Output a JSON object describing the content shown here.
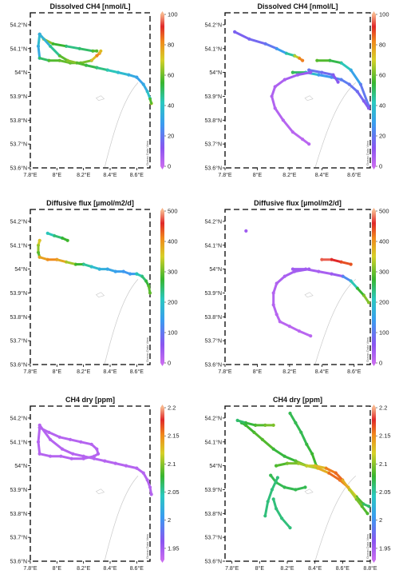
{
  "chart_data": [
    {
      "type": "scatter",
      "title": "Dissolved CH4 [nmol/L]",
      "xticks": [
        "7.8°E",
        "8°E",
        "8.2°E",
        "8.4°E",
        "8.6°E"
      ],
      "yticks": [
        "54.2°N",
        "54.1°N",
        "54°N",
        "53.9°N",
        "53.8°N",
        "53.7°N",
        "53.6°N"
      ],
      "colorbar_ticks": [
        "100",
        "80",
        "60",
        "40",
        "20",
        "0"
      ],
      "clim": [
        0,
        100
      ],
      "watermark": "Ocean Data View",
      "xlim": [
        7.8,
        8.7
      ],
      "ylim": [
        53.6,
        54.25
      ],
      "tracks": [
        {
          "lon": [
            7.87,
            7.9,
            7.97,
            8.07,
            8.17,
            8.27,
            8.3
          ],
          "lat": [
            54.16,
            54.14,
            54.12,
            54.11,
            54.1,
            54.09,
            54.09
          ],
          "value": [
            70,
            65,
            60,
            50,
            45,
            55,
            60
          ]
        },
        {
          "lon": [
            7.87,
            7.86,
            7.87
          ],
          "lat": [
            54.16,
            54.11,
            54.06
          ],
          "value": [
            40,
            35,
            30
          ]
        },
        {
          "lon": [
            7.87,
            7.94,
            8.02,
            8.1,
            8.18,
            8.26,
            8.3,
            8.32,
            8.33
          ],
          "lat": [
            54.06,
            54.05,
            54.05,
            54.04,
            54.04,
            54.05,
            54.07,
            54.08,
            54.09
          ],
          "value": [
            45,
            55,
            60,
            58,
            60,
            62,
            85,
            80,
            70
          ]
        },
        {
          "lon": [
            7.87,
            7.95,
            8.02,
            8.08,
            8.15,
            8.22,
            8.3,
            8.38,
            8.46,
            8.54,
            8.6,
            8.65,
            8.68,
            8.7,
            8.71
          ],
          "lat": [
            54.16,
            54.11,
            54.07,
            54.05,
            54.04,
            54.03,
            54.02,
            54.01,
            54.0,
            53.99,
            53.98,
            53.95,
            53.92,
            53.89,
            53.87
          ],
          "value": [
            30,
            40,
            52,
            65,
            60,
            55,
            50,
            45,
            40,
            35,
            30,
            30,
            35,
            45,
            70
          ]
        }
      ]
    },
    {
      "type": "scatter",
      "title": "Dissolved CH4 [nmol/L]",
      "xticks": [
        "7.8°E",
        "8°E",
        "8.2°E",
        "8.4°E",
        "8.6°E"
      ],
      "yticks": [
        "54.2°N",
        "54.1°N",
        "54°N",
        "53.9°N",
        "53.8°N",
        "53.7°N",
        "53.6°N"
      ],
      "colorbar_ticks": [
        "100",
        "80",
        "60",
        "40",
        "20",
        "0"
      ],
      "clim": [
        0,
        100
      ],
      "watermark": "Ocean Data View",
      "xlim": [
        7.8,
        8.7
      ],
      "ylim": [
        53.6,
        54.25
      ],
      "tracks": [
        {
          "lon": [
            7.86,
            7.95,
            8.05,
            8.12,
            8.18,
            8.23,
            8.26,
            8.28
          ],
          "lat": [
            54.17,
            54.14,
            54.12,
            54.1,
            54.08,
            54.07,
            54.06,
            54.05
          ],
          "value": [
            15,
            15,
            18,
            22,
            35,
            55,
            80,
            85
          ]
        },
        {
          "lon": [
            8.37,
            8.45,
            8.52,
            8.58,
            8.64,
            8.69
          ],
          "lat": [
            54.05,
            54.05,
            54.04,
            54.01,
            53.95,
            53.86
          ],
          "value": [
            60,
            55,
            50,
            35,
            25,
            15
          ]
        },
        {
          "lon": [
            8.22,
            8.3,
            8.38,
            8.46,
            8.52,
            8.57,
            8.62,
            8.66,
            8.69
          ],
          "lat": [
            54.0,
            54.0,
            53.99,
            53.98,
            53.97,
            53.95,
            53.92,
            53.88,
            53.85
          ],
          "value": [
            55,
            45,
            30,
            25,
            22,
            20,
            18,
            15,
            12
          ]
        },
        {
          "lon": [
            8.32,
            8.4,
            8.47,
            8.5
          ],
          "lat": [
            54.01,
            54.0,
            53.99,
            53.96
          ],
          "value": [
            20,
            18,
            16,
            10
          ]
        },
        {
          "lon": [
            8.33,
            8.25,
            8.17,
            8.11,
            8.09,
            8.11,
            8.16,
            8.22,
            8.28,
            8.32
          ],
          "lat": [
            54.0,
            53.99,
            53.97,
            53.94,
            53.9,
            53.85,
            53.8,
            53.75,
            53.72,
            53.7
          ],
          "value": [
            10,
            8,
            6,
            5,
            5,
            4,
            4,
            3,
            3,
            3
          ]
        }
      ]
    },
    {
      "type": "scatter",
      "title": "Diffusive flux [µmol/m2/d]",
      "xticks": [
        "7.8°E",
        "8°E",
        "8.2°E",
        "8.4°E",
        "8.6°E"
      ],
      "yticks": [
        "54.2°N",
        "54.1°N",
        "54°N",
        "53.9°N",
        "53.8°N",
        "53.7°N",
        "53.6°N"
      ],
      "colorbar_ticks": [
        "500",
        "400",
        "300",
        "200",
        "100",
        "0"
      ],
      "clim": [
        0,
        500
      ],
      "watermark": "Ocean Data View",
      "xlim": [
        7.8,
        8.7
      ],
      "ylim": [
        53.6,
        54.25
      ],
      "tracks": [
        {
          "lon": [
            7.93,
            7.98,
            8.04,
            8.08
          ],
          "lat": [
            54.15,
            54.14,
            54.13,
            54.12
          ],
          "value": [
            200,
            230,
            260,
            290
          ]
        },
        {
          "lon": [
            7.87,
            7.86,
            7.86,
            7.87
          ],
          "lat": [
            54.12,
            54.1,
            54.07,
            54.05
          ],
          "value": [
            380,
            330,
            300,
            280
          ]
        },
        {
          "lon": [
            7.87,
            7.93,
            8.0,
            8.07,
            8.14,
            8.2,
            8.26,
            8.32,
            8.38,
            8.44,
            8.5,
            8.55,
            8.6
          ],
          "lat": [
            54.05,
            54.04,
            54.04,
            54.03,
            54.02,
            54.02,
            54.01,
            54.0,
            54.0,
            53.99,
            53.99,
            53.98,
            53.98
          ],
          "value": [
            380,
            400,
            420,
            350,
            300,
            250,
            200,
            180,
            160,
            150,
            140,
            130,
            150
          ]
        },
        {
          "lon": [
            8.6,
            8.64,
            8.67,
            8.69,
            8.7
          ],
          "lat": [
            53.98,
            53.97,
            53.95,
            53.93,
            53.9
          ],
          "value": [
            200,
            230,
            260,
            280,
            300
          ]
        }
      ]
    },
    {
      "type": "scatter",
      "title": "Diffusive flux [µmol/m2/d]",
      "xticks": [
        "7.8°E",
        "8°E",
        "8.2°E",
        "8.4°E",
        "8.6°E"
      ],
      "yticks": [
        "54.2°N",
        "54.1°N",
        "54°N",
        "53.9°N",
        "53.8°N",
        "53.7°N",
        "53.6°N"
      ],
      "colorbar_ticks": [
        "500",
        "400",
        "300",
        "200",
        "100",
        "0"
      ],
      "clim": [
        0,
        500
      ],
      "watermark": "Ocean Data View",
      "xlim": [
        7.8,
        8.7
      ],
      "ylim": [
        53.6,
        54.25
      ],
      "tracks": [
        {
          "lon": [
            7.93
          ],
          "lat": [
            54.16
          ],
          "value": [
            40
          ]
        },
        {
          "lon": [
            8.4,
            8.46,
            8.52,
            8.58
          ],
          "lat": [
            54.04,
            54.04,
            54.03,
            54.02
          ],
          "value": [
            480,
            470,
            450,
            430
          ]
        },
        {
          "lon": [
            8.22,
            8.3,
            8.38,
            8.46,
            8.53,
            8.58,
            8.62,
            8.66,
            8.69
          ],
          "lat": [
            54.0,
            54.0,
            53.99,
            53.98,
            53.97,
            53.95,
            53.92,
            53.89,
            53.86
          ],
          "value": [
            40,
            35,
            30,
            30,
            60,
            180,
            250,
            300,
            320
          ]
        },
        {
          "lon": [
            8.32,
            8.23,
            8.17,
            8.12,
            8.1,
            8.1,
            8.12,
            8.14,
            8.2,
            8.26,
            8.33
          ],
          "lat": [
            54.0,
            53.99,
            53.97,
            53.94,
            53.9,
            53.85,
            53.81,
            53.78,
            53.76,
            53.74,
            53.72
          ],
          "value": [
            40,
            35,
            30,
            25,
            20,
            20,
            18,
            15,
            15,
            15,
            15
          ]
        }
      ]
    },
    {
      "type": "scatter",
      "title": "CH4 dry [ppm]",
      "xticks": [
        "7.8°E",
        "8°E",
        "8.2°E",
        "8.4°E",
        "8.6°E"
      ],
      "yticks": [
        "54.2°N",
        "54.1°N",
        "54°N",
        "53.9°N",
        "53.8°N",
        "53.7°N",
        "53.6°N"
      ],
      "colorbar_ticks": [
        "2.2",
        "2.15",
        "2.1",
        "2.05",
        "2",
        "1.95"
      ],
      "clim": [
        1.93,
        2.2
      ],
      "watermark": "Ocean Data View",
      "xlim": [
        7.8,
        8.7
      ],
      "ylim": [
        53.6,
        54.25
      ],
      "tracks": [
        {
          "lon": [
            7.87,
            7.94,
            8.02,
            8.1,
            8.18,
            8.26,
            8.3,
            8.31
          ],
          "lat": [
            54.16,
            54.14,
            54.12,
            54.11,
            54.1,
            54.09,
            54.07,
            54.05
          ],
          "value": [
            1.94,
            1.94,
            1.94,
            1.94,
            1.94,
            1.94,
            1.94,
            1.94
          ]
        },
        {
          "lon": [
            7.87,
            7.86,
            7.87
          ],
          "lat": [
            54.16,
            54.1,
            54.05
          ],
          "value": [
            1.94,
            1.94,
            1.94
          ]
        },
        {
          "lon": [
            7.87,
            7.95,
            8.03,
            8.11,
            8.2,
            8.28,
            8.31
          ],
          "lat": [
            54.05,
            54.04,
            54.04,
            54.03,
            54.03,
            54.04,
            54.05
          ],
          "value": [
            1.94,
            1.94,
            1.94,
            1.94,
            1.94,
            1.94,
            1.94
          ]
        },
        {
          "lon": [
            7.87,
            7.95,
            8.04,
            8.12,
            8.2,
            8.28,
            8.36,
            8.44,
            8.52,
            8.6,
            8.65,
            8.68,
            8.7,
            8.71
          ],
          "lat": [
            54.17,
            54.11,
            54.07,
            54.05,
            54.04,
            54.03,
            54.02,
            54.01,
            54.0,
            53.99,
            53.97,
            53.94,
            53.91,
            53.88
          ],
          "value": [
            1.94,
            1.94,
            1.94,
            1.94,
            1.94,
            1.94,
            1.94,
            1.94,
            1.94,
            1.94,
            1.94,
            1.94,
            1.94,
            1.94
          ]
        }
      ]
    },
    {
      "type": "scatter",
      "title": "CH4 dry [ppm]",
      "xticks": [
        "7.8°E",
        "8°E",
        "8.2°E",
        "8.4°E",
        "8.6°E",
        "8.8°E"
      ],
      "yticks": [
        "54.2°N",
        "54.1°N",
        "54°N",
        "53.9°N",
        "53.8°N",
        "53.7°N",
        "53.6°N"
      ],
      "colorbar_ticks": [
        "2.2",
        "2.15",
        "2.1",
        "2.05",
        "2",
        "1.95"
      ],
      "clim": [
        1.93,
        2.2
      ],
      "watermark": "Ocean Data View",
      "xlim": [
        7.75,
        8.8
      ],
      "ylim": [
        53.6,
        54.25
      ],
      "tracks": [
        {
          "lon": [
            7.87,
            7.9,
            7.96,
            8.02,
            8.1,
            8.18,
            8.26,
            8.34,
            8.42,
            8.5,
            8.58,
            8.64,
            8.7,
            8.75,
            8.79
          ],
          "lat": [
            54.18,
            54.17,
            54.14,
            54.11,
            54.07,
            54.04,
            54.02,
            54.0,
            53.99,
            53.97,
            53.94,
            53.91,
            53.87,
            53.84,
            53.83
          ],
          "value": [
            2.07,
            2.08,
            2.08,
            2.09,
            2.08,
            2.07,
            2.08,
            2.1,
            2.12,
            2.15,
            2.17,
            2.14,
            2.1,
            2.07,
            2.06
          ]
        },
        {
          "lon": [
            7.84,
            7.9,
            7.97,
            8.04,
            8.1
          ],
          "lat": [
            54.19,
            54.18,
            54.17,
            54.17,
            54.17
          ],
          "value": [
            2.06,
            2.07,
            2.08,
            2.09,
            2.1
          ]
        },
        {
          "lon": [
            8.22,
            8.26,
            8.3,
            8.34,
            8.38,
            8.41
          ],
          "lat": [
            54.22,
            54.18,
            54.14,
            54.09,
            54.05,
            54.0
          ],
          "value": [
            2.07,
            2.07,
            2.07,
            2.07,
            2.08,
            2.08
          ]
        },
        {
          "lon": [
            8.12,
            8.2,
            8.28,
            8.34,
            8.4,
            8.48,
            8.55,
            8.6,
            8.65,
            8.7,
            8.74,
            8.78
          ],
          "lat": [
            54.0,
            54.01,
            54.01,
            54.0,
            54.0,
            53.99,
            53.97,
            53.94,
            53.9,
            53.86,
            53.83,
            53.8
          ],
          "value": [
            2.08,
            2.09,
            2.1,
            2.11,
            2.12,
            2.14,
            2.17,
            2.15,
            2.12,
            2.1,
            2.09,
            2.08
          ]
        },
        {
          "lon": [
            8.08,
            8.12,
            8.18,
            8.26,
            8.33
          ],
          "lat": [
            53.96,
            53.93,
            53.91,
            53.9,
            53.91
          ],
          "value": [
            2.07,
            2.07,
            2.07,
            2.07,
            2.07
          ]
        },
        {
          "lon": [
            8.13,
            8.09,
            8.06,
            8.04
          ],
          "lat": [
            53.95,
            53.9,
            53.85,
            53.79
          ],
          "value": [
            2.06,
            2.06,
            2.06,
            2.06
          ]
        },
        {
          "lon": [
            8.1,
            8.12,
            8.16,
            8.22
          ],
          "lat": [
            53.86,
            53.82,
            53.78,
            53.74
          ],
          "value": [
            2.06,
            2.06,
            2.06,
            2.06
          ]
        }
      ]
    }
  ]
}
